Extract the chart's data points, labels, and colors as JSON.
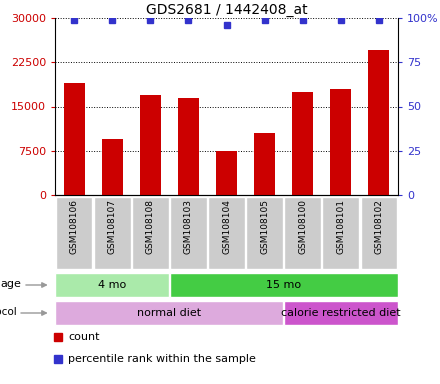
{
  "title": "GDS2681 / 1442408_at",
  "samples": [
    "GSM108106",
    "GSM108107",
    "GSM108108",
    "GSM108103",
    "GSM108104",
    "GSM108105",
    "GSM108100",
    "GSM108101",
    "GSM108102"
  ],
  "bar_values": [
    19000,
    9500,
    17000,
    16500,
    7500,
    10500,
    17500,
    18000,
    24500
  ],
  "percentile_values": [
    99,
    99,
    99,
    99,
    96,
    99,
    99,
    99,
    99
  ],
  "bar_color": "#cc0000",
  "dot_color": "#3333cc",
  "ylim_left": [
    0,
    30000
  ],
  "yticks_left": [
    0,
    7500,
    15000,
    22500,
    30000
  ],
  "ylim_right": [
    0,
    100
  ],
  "yticks_right": [
    0,
    25,
    50,
    75,
    100
  ],
  "ytick_labels_right": [
    "0",
    "25",
    "50",
    "75",
    "100%"
  ],
  "age_groups": [
    {
      "label": "4 mo",
      "start": 0,
      "end": 3,
      "color": "#aaeaaa"
    },
    {
      "label": "15 mo",
      "start": 3,
      "end": 9,
      "color": "#44cc44"
    }
  ],
  "protocol_groups": [
    {
      "label": "normal diet",
      "start": 0,
      "end": 6,
      "color": "#ddaadd"
    },
    {
      "label": "calorie restricted diet",
      "start": 6,
      "end": 9,
      "color": "#cc55cc"
    }
  ],
  "legend_items": [
    {
      "color": "#cc0000",
      "label": "count"
    },
    {
      "color": "#3333cc",
      "label": "percentile rank within the sample"
    }
  ],
  "background_color": "#ffffff",
  "tick_label_bg": "#cccccc",
  "arrow_color": "#999999"
}
